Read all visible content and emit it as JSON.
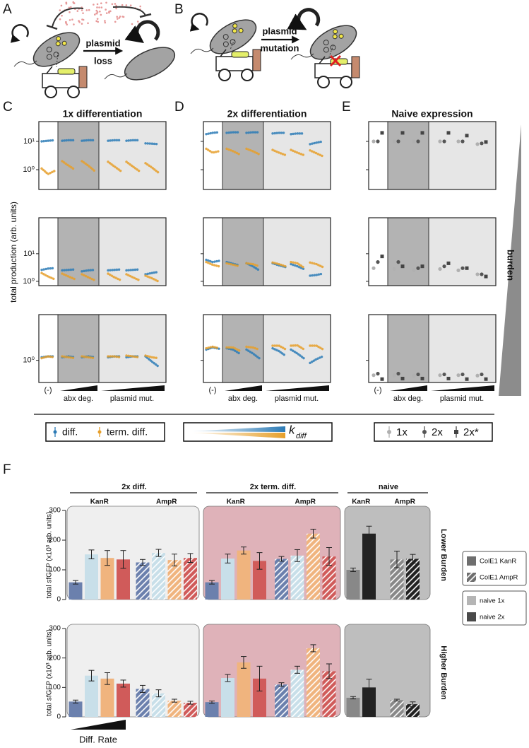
{
  "figure": {
    "panel_labels": [
      "A",
      "B",
      "C",
      "D",
      "E",
      "F"
    ]
  },
  "diagram_a": {
    "arrow_label": [
      "plasmid",
      "loss"
    ]
  },
  "diagram_b": {
    "arrow_label": [
      "plasmid",
      "mutation"
    ]
  },
  "burden_label": "burden",
  "chart_data": [
    {
      "type": "scatter",
      "title": "1x differentiation",
      "ylabel": "total production (arb. units)",
      "ylog": true,
      "tick_labels": true,
      "x_labels": [
        "(-)",
        "abx deg.",
        "plasmid mut."
      ],
      "series": [
        {
          "name": "diff.",
          "color": "#2c7bb6"
        },
        {
          "name": "term. diff.",
          "color": "#e69f2a"
        }
      ],
      "rows": [
        {
          "ylim": [
            0.2,
            50
          ],
          "yticks": [
            {
              "value": 1,
              "label": "10⁰"
            },
            {
              "value": 10,
              "label": "10¹"
            }
          ],
          "values": [
            [
              [
                10,
                10.5,
                11
              ],
              [
                10.5,
                11,
                11
              ],
              [
                10.5,
                11,
                11
              ],
              [
                10.5,
                11,
                11
              ],
              [
                10.5,
                11,
                11
              ],
              [
                8.5,
                8.3,
                8
              ]
            ],
            [
              [
                1.1,
                0.7,
                0.9
              ],
              [
                2,
                1.4,
                1
              ],
              [
                2,
                1.4,
                0.9
              ],
              [
                1.9,
                1.3,
                0.9
              ],
              [
                1.9,
                1.3,
                0.9
              ],
              [
                1.7,
                1.2,
                0.8
              ]
            ]
          ]
        },
        {
          "ylim": [
            0.7,
            200
          ],
          "yticks": [
            {
              "value": 1,
              "label": "10⁰"
            },
            {
              "value": 10,
              "label": "10¹"
            }
          ],
          "values": [
            [
              [
                2.6,
                2.9,
                3
              ],
              [
                2.5,
                2.6,
                2.7
              ],
              [
                2.3,
                2.5,
                2.6
              ],
              [
                2.5,
                2.6,
                2.7
              ],
              [
                2.5,
                2.6,
                2.7
              ],
              [
                1.8,
                2,
                2.2
              ]
            ],
            [
              [
                2,
                1.5,
                1.2
              ],
              [
                1.9,
                1.5,
                1.2
              ],
              [
                1.8,
                1.4,
                1.1
              ],
              [
                1.9,
                1.4,
                1.1
              ],
              [
                1.8,
                1.4,
                1.1
              ],
              [
                1.6,
                1.3,
                1
              ]
            ]
          ]
        },
        {
          "ylim": [
            0.15,
            50
          ],
          "yticks": [
            {
              "value": 1,
              "label": "10⁰"
            }
          ],
          "values": [
            [
              [
                1.3,
                1.4,
                1.4
              ],
              [
                1.3,
                1.4,
                1.3
              ],
              [
                1.3,
                1.4,
                1.3
              ],
              [
                1.3,
                1.4,
                1.4
              ],
              [
                1.3,
                1.4,
                1.4
              ],
              [
                1.4,
                0.9,
                0.6
              ]
            ],
            [
              [
                1.2,
                1.4,
                1.3
              ],
              [
                1.4,
                1.3,
                1.2
              ],
              [
                1.4,
                1.3,
                1.2
              ],
              [
                1.4,
                1.4,
                1.3
              ],
              [
                1.5,
                1.4,
                1.3
              ],
              [
                1.5,
                1.3,
                1.2
              ]
            ]
          ]
        }
      ]
    },
    {
      "type": "scatter",
      "title": "2x differentiation",
      "ylog": true,
      "tick_labels": false,
      "x_labels": [
        "(-)",
        "abx deg.",
        "plasmid mut."
      ],
      "series": [
        {
          "name": "diff.",
          "color": "#2c7bb6"
        },
        {
          "name": "term. diff.",
          "color": "#e69f2a"
        }
      ],
      "legend_label": {
        "symbol": "k",
        "subscript": "diff"
      },
      "rows": [
        {
          "ylim": [
            0.2,
            50
          ],
          "yticks": [
            1,
            10
          ],
          "values": [
            [
              [
                18,
                20,
                21
              ],
              [
                20,
                21,
                21
              ],
              [
                20,
                21,
                21
              ],
              [
                19,
                20,
                20
              ],
              [
                18,
                19,
                19
              ],
              [
                8,
                9,
                10
              ]
            ],
            [
              [
                5.5,
                4,
                4.5
              ],
              [
                5.5,
                4.5,
                3.5
              ],
              [
                5.5,
                4.5,
                3.5
              ],
              [
                5,
                4,
                3.3
              ],
              [
                5,
                4,
                3.3
              ],
              [
                4.8,
                3.8,
                3
              ]
            ]
          ]
        },
        {
          "ylim": [
            0.7,
            200
          ],
          "yticks": [
            1,
            10
          ],
          "values": [
            [
              [
                6,
                5,
                5.5
              ],
              [
                5,
                4.3,
                3.8
              ],
              [
                4.5,
                3.5,
                2.5
              ],
              [
                4.5,
                3.8,
                3.3
              ],
              [
                4.2,
                3.5,
                2.8
              ],
              [
                1.6,
                1.7,
                1.9
              ]
            ],
            [
              [
                5,
                4,
                3.5
              ],
              [
                4.5,
                4,
                3.5
              ],
              [
                4.5,
                4.2,
                3.5
              ],
              [
                4.8,
                4.2,
                3.5
              ],
              [
                5,
                4.5,
                3.2
              ],
              [
                4.8,
                4.2,
                3.3
              ]
            ]
          ]
        },
        {
          "ylim": [
            0.15,
            50
          ],
          "yticks": [
            1
          ],
          "values": [
            [
              [
                2.5,
                3,
                2.7
              ],
              [
                2.8,
                2.5,
                1.8
              ],
              [
                2.5,
                1.8,
                1.2
              ],
              [
                2.8,
                2.2,
                1.5
              ],
              [
                2.5,
                1.8,
                1.2
              ],
              [
                0.8,
                1.1,
                1.4
              ]
            ],
            [
              [
                2.8,
                3.2,
                2.8
              ],
              [
                3,
                3,
                2.3
              ],
              [
                3.2,
                3,
                2.5
              ],
              [
                3.5,
                3.5,
                2.6
              ],
              [
                3.5,
                3.6,
                2.6
              ],
              [
                3.5,
                3.5,
                2.6
              ]
            ]
          ]
        }
      ]
    },
    {
      "type": "dotplot",
      "title": "Naive expression",
      "ylog": true,
      "tick_labels": false,
      "x_labels": [
        "(-)",
        "abx deg.",
        "plasmid mut."
      ],
      "series": [
        {
          "name": "1x",
          "color": "#b0b0b0",
          "marker": "circle"
        },
        {
          "name": "2x",
          "color": "#555555",
          "marker": "circle"
        },
        {
          "name": "2x*",
          "color": "#444444",
          "marker": "square"
        }
      ],
      "rows": [
        {
          "ylim": [
            0.2,
            50
          ],
          "yticks": [
            1,
            10
          ],
          "values": [
            [
              10,
              10,
              10,
              10,
              10,
              8
            ],
            [
              10,
              10,
              10,
              10,
              10,
              8.5
            ],
            [
              20,
              20,
              20,
              20,
              16,
              9.5
            ]
          ]
        },
        {
          "ylim": [
            0.7,
            200
          ],
          "yticks": [
            1,
            10
          ],
          "values": [
            [
              3,
              2.8,
              2.5,
              2.8,
              2.5,
              1.8
            ],
            [
              5,
              5,
              3,
              3.5,
              3,
              1.8
            ],
            [
              8,
              3.5,
              3.5,
              4.5,
              3,
              1.5
            ]
          ]
        },
        {
          "ylim": [
            0.15,
            50
          ],
          "yticks": [
            1
          ],
          "values": [
            [
              0.28,
              0.28,
              0.27,
              0.28,
              0.28,
              0.27
            ],
            [
              0.32,
              0.32,
              0.3,
              0.3,
              0.3,
              0.3
            ],
            [
              0.2,
              0.21,
              0.21,
              0.21,
              0.2,
              0.2
            ]
          ]
        }
      ]
    },
    {
      "type": "bar",
      "ylabel": "total sfGFP (x10³ arb. units)",
      "ylim": [
        0,
        300
      ],
      "yticks": [
        0,
        100,
        200,
        300
      ],
      "groups": [
        {
          "label": "2x diff.",
          "background": "#efefef",
          "colors": [
            "#6b80ad",
            "#c8dfe9",
            "#f0b47e",
            "#d05b5a"
          ]
        },
        {
          "label": "2x term. diff.",
          "background": "#dfb2b9",
          "colors": [
            "#6b80ad",
            "#c8dfe9",
            "#f0b47e",
            "#d05b5a"
          ]
        },
        {
          "label": "naive",
          "background": "#bebebe",
          "colors": [
            "#888888",
            "#222222"
          ]
        }
      ],
      "subgroups": [
        {
          "label": "KanR",
          "hatch": false
        },
        {
          "label": "AmpR",
          "hatch": true
        }
      ],
      "panels": [
        {
          "title": "Lower Burden",
          "values": [
            [
              [
                58,
                152,
                140,
                135
              ],
              [
                125,
                157,
                133,
                140
              ]
            ],
            [
              [
                58,
                138,
                165,
                130
              ],
              [
                137,
                148,
                222,
                145
              ]
            ],
            [
              [
                100,
                222
              ],
              [
                135,
                137
              ]
            ]
          ],
          "errors": [
            [
              [
                6,
                15,
                25,
                30
              ],
              [
                10,
                12,
                20,
                15
              ]
            ],
            [
              [
                6,
                15,
                12,
                28
              ],
              [
                8,
                20,
                15,
                30
              ]
            ],
            [
              [
                6,
                25
              ],
              [
                28,
                15
              ]
            ]
          ]
        },
        {
          "title": "Higher Burden",
          "values": [
            [
              [
                52,
                140,
                130,
                113
              ],
              [
                95,
                80,
                55,
                48
              ]
            ],
            [
              [
                50,
                132,
                185,
                130
              ],
              [
                110,
                160,
                233,
                155
              ]
            ],
            [
              [
                65,
                100
              ],
              [
                57,
                43
              ]
            ]
          ],
          "errors": [
            [
              [
                5,
                18,
                20,
                12
              ],
              [
                12,
                12,
                5,
                5
              ]
            ],
            [
              [
                4,
                12,
                20,
                42
              ],
              [
                6,
                12,
                12,
                25
              ]
            ],
            [
              [
                4,
                28
              ],
              [
                3,
                8
              ]
            ]
          ]
        }
      ],
      "legend": [
        [
          {
            "label": "ColE1 KanR",
            "color": "#6e6e6e",
            "hatch": false
          },
          {
            "label": "ColE1 AmpR",
            "color": "#6e6e6e",
            "hatch": true
          }
        ],
        [
          {
            "label": "naive 1x",
            "color": "#b5b5b5",
            "hatch": false
          },
          {
            "label": "naive 2x",
            "color": "#4a4a4a",
            "hatch": false
          }
        ]
      ],
      "x_label": "Diff. Rate"
    }
  ]
}
